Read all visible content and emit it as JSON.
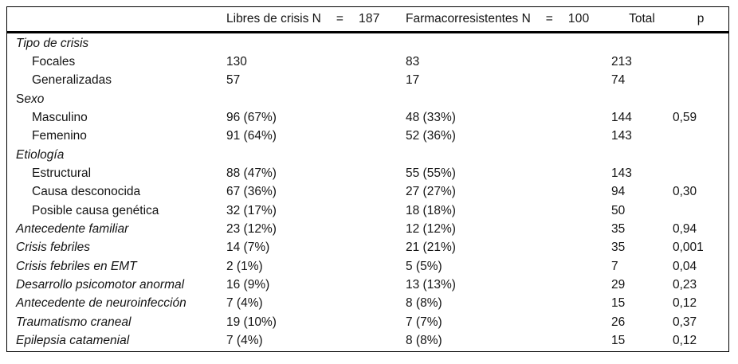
{
  "colors": {
    "background": "#ffffff",
    "text": "#141414",
    "border": "#000000"
  },
  "table": {
    "header": {
      "col1": {
        "label": "Libres de crisis N",
        "eq": "=",
        "n": "187"
      },
      "col2": {
        "label": "Farmacorresistentes N",
        "eq": "=",
        "n": "100"
      },
      "total_label": "Total",
      "p_label": "p"
    },
    "rows": [
      {
        "label": "Tipo de crisis",
        "style": "group",
        "c1": "",
        "c2": "",
        "total": "",
        "p": ""
      },
      {
        "label": "Focales",
        "style": "item",
        "c1": "130",
        "c2": "83",
        "total": "213",
        "p": ""
      },
      {
        "label": "Generalizadas",
        "style": "item",
        "c1": "57",
        "c2": "17",
        "total": "74",
        "p": ""
      },
      {
        "label": "Sexo",
        "style": "group",
        "upright_first_char": true,
        "c1": "",
        "c2": "",
        "total": "",
        "p": ""
      },
      {
        "label": "Masculino",
        "style": "item",
        "c1": "96 (67%)",
        "c2": "48 (33%)",
        "total": "144",
        "p": "0,59"
      },
      {
        "label": "Femenino",
        "style": "item",
        "c1": "91 (64%)",
        "c2": "52 (36%)",
        "total": "143",
        "p": ""
      },
      {
        "label": "Etiología",
        "style": "group",
        "c1": "",
        "c2": "",
        "total": "",
        "p": ""
      },
      {
        "label": "Estructural",
        "style": "item",
        "c1": "88 (47%)",
        "c2": "55 (55%)",
        "total": "143",
        "p": ""
      },
      {
        "label": "Causa desconocida",
        "style": "item",
        "c1": "67 (36%)",
        "c2": "27 (27%)",
        "total": "94",
        "p": "0,30"
      },
      {
        "label": "Posible causa genética",
        "style": "item",
        "c1": "32 (17%)",
        "c2": "18 (18%)",
        "total": "50",
        "p": ""
      },
      {
        "label": "Antecedente familiar",
        "style": "leaf",
        "c1": "23 (12%)",
        "c2": "12 (12%)",
        "total": "35",
        "p": "0,94"
      },
      {
        "label": "Crisis febriles",
        "style": "leaf",
        "c1": "14 (7%)",
        "c2": "21 (21%)",
        "total": "35",
        "p": "0,001"
      },
      {
        "label": "Crisis febriles en EMT",
        "style": "leaf",
        "c1": "2 (1%)",
        "c2": "5 (5%)",
        "total": "7",
        "p": "0,04"
      },
      {
        "label": "Desarrollo psicomotor anormal",
        "style": "leaf",
        "c1": "16 (9%)",
        "c2": "13 (13%)",
        "total": "29",
        "p": "0,23"
      },
      {
        "label": "Antecedente de neuroinfección",
        "style": "leaf",
        "c1": "7 (4%)",
        "c2": "8 (8%)",
        "total": "15",
        "p": "0,12"
      },
      {
        "label": "Traumatismo craneal",
        "style": "leaf",
        "c1": "19 (10%)",
        "c2": "7 (7%)",
        "total": "26",
        "p": "0,37"
      },
      {
        "label": "Epilepsia catamenial",
        "style": "leaf",
        "c1": "7 (4%)",
        "c2": "8 (8%)",
        "total": "15",
        "p": "0,12"
      }
    ]
  }
}
